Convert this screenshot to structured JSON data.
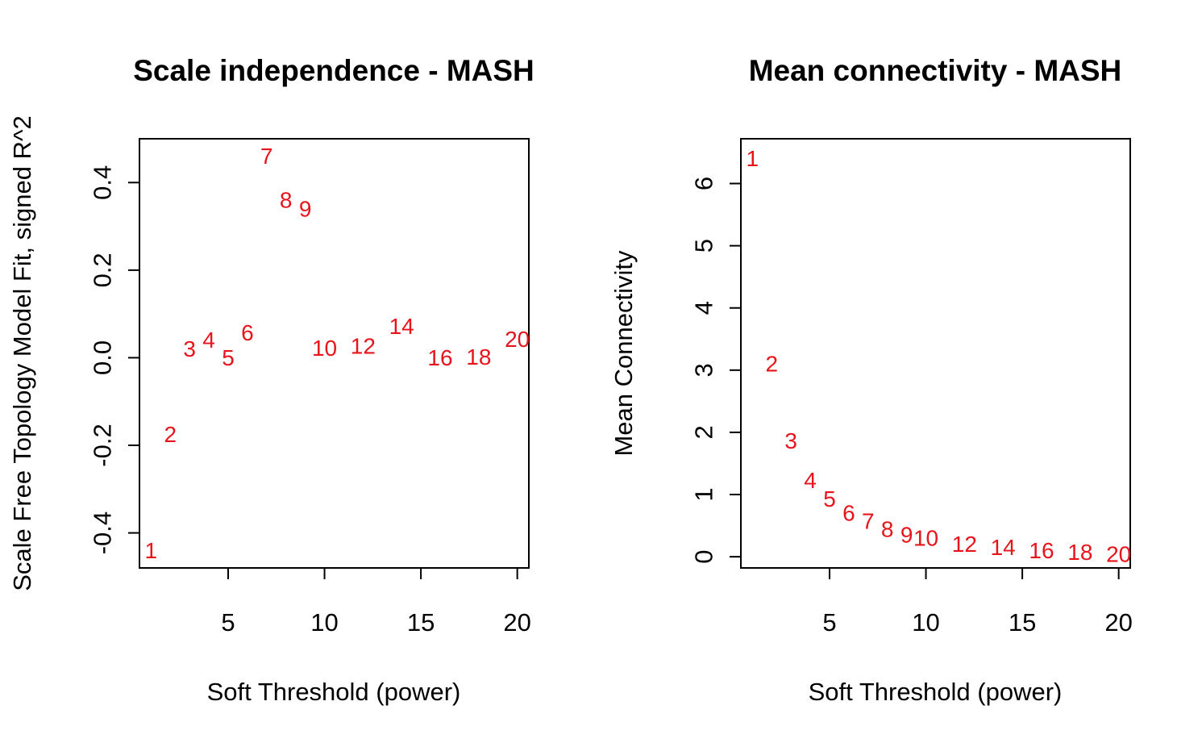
{
  "chart_data": [
    {
      "type": "scatter",
      "title": "Scale independence - MASH",
      "xlabel": "Soft Threshold (power)",
      "ylabel": "Scale Free Topology Model Fit, signed R^2",
      "xlim": [
        0.4,
        20.6
      ],
      "ylim": [
        -0.48,
        0.5
      ],
      "x_ticks": [
        "5",
        "10",
        "15",
        "20"
      ],
      "y_ticks": [
        "-0.4",
        "-0.2",
        "0.0",
        "0.2",
        "0.4"
      ],
      "point_color": "#e8141c",
      "points": [
        {
          "label": "1",
          "x": 1,
          "y": -0.44
        },
        {
          "label": "2",
          "x": 2,
          "y": -0.175
        },
        {
          "label": "3",
          "x": 3,
          "y": 0.02
        },
        {
          "label": "4",
          "x": 4,
          "y": 0.04
        },
        {
          "label": "5",
          "x": 5,
          "y": 0.0
        },
        {
          "label": "6",
          "x": 6,
          "y": 0.057
        },
        {
          "label": "7",
          "x": 7,
          "y": 0.46
        },
        {
          "label": "8",
          "x": 8,
          "y": 0.36
        },
        {
          "label": "9",
          "x": 9,
          "y": 0.34
        },
        {
          "label": "10",
          "x": 10,
          "y": 0.022
        },
        {
          "label": "12",
          "x": 12,
          "y": 0.027
        },
        {
          "label": "14",
          "x": 14,
          "y": 0.072
        },
        {
          "label": "16",
          "x": 16,
          "y": 0.0
        },
        {
          "label": "18",
          "x": 18,
          "y": 0.002
        },
        {
          "label": "20",
          "x": 20,
          "y": 0.042
        }
      ]
    },
    {
      "type": "scatter",
      "title": "Mean connectivity - MASH",
      "xlabel": "Soft Threshold (power)",
      "ylabel": "Mean Connectivity",
      "xlim": [
        0.4,
        20.6
      ],
      "ylim": [
        -0.18,
        6.72
      ],
      "x_ticks": [
        "5",
        "10",
        "15",
        "20"
      ],
      "y_ticks": [
        "0",
        "1",
        "2",
        "3",
        "4",
        "5",
        "6"
      ],
      "point_color": "#e8141c",
      "points": [
        {
          "label": "1",
          "x": 1,
          "y": 6.4
        },
        {
          "label": "2",
          "x": 2,
          "y": 3.1
        },
        {
          "label": "3",
          "x": 3,
          "y": 1.86
        },
        {
          "label": "4",
          "x": 4,
          "y": 1.23
        },
        {
          "label": "5",
          "x": 5,
          "y": 0.93
        },
        {
          "label": "6",
          "x": 6,
          "y": 0.7
        },
        {
          "label": "7",
          "x": 7,
          "y": 0.57
        },
        {
          "label": "8",
          "x": 8,
          "y": 0.44
        },
        {
          "label": "9",
          "x": 9,
          "y": 0.35
        },
        {
          "label": "10",
          "x": 10,
          "y": 0.3
        },
        {
          "label": "12",
          "x": 12,
          "y": 0.2
        },
        {
          "label": "14",
          "x": 14,
          "y": 0.15
        },
        {
          "label": "16",
          "x": 16,
          "y": 0.1
        },
        {
          "label": "18",
          "x": 18,
          "y": 0.07
        },
        {
          "label": "20",
          "x": 20,
          "y": 0.04
        }
      ]
    }
  ]
}
